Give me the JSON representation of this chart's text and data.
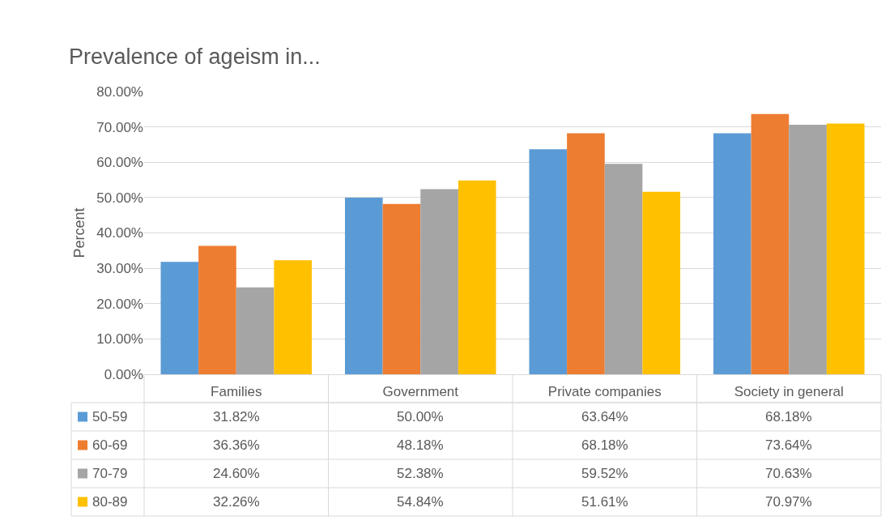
{
  "chart_data": {
    "type": "bar",
    "title": "Prevalence of ageism in...",
    "ylabel": "Percent",
    "categories": [
      "Families",
      "Government",
      "Private companies",
      "Society in general"
    ],
    "series": [
      {
        "name": "50-59",
        "color": "#5b9bd5",
        "values": [
          31.82,
          50.0,
          63.64,
          68.18
        ],
        "value_labels": [
          "31.82%",
          "50.00%",
          "63.64%",
          "68.18%"
        ]
      },
      {
        "name": "60-69",
        "color": "#ed7d31",
        "values": [
          36.36,
          48.18,
          68.18,
          73.64
        ],
        "value_labels": [
          "36.36%",
          "48.18%",
          "68.18%",
          "73.64%"
        ]
      },
      {
        "name": "70-79",
        "color": "#a5a5a5",
        "values": [
          24.6,
          52.38,
          59.52,
          70.63
        ],
        "value_labels": [
          "24.60%",
          "52.38%",
          "59.52%",
          "70.63%"
        ]
      },
      {
        "name": "80-89",
        "color": "#ffc000",
        "values": [
          32.26,
          54.84,
          51.61,
          70.97
        ],
        "value_labels": [
          "32.26%",
          "54.84%",
          "51.61%",
          "70.97%"
        ]
      }
    ],
    "ylim": [
      0,
      80
    ],
    "yticks": [
      {
        "value": 0,
        "label": "0.00%"
      },
      {
        "value": 10,
        "label": "10.00%"
      },
      {
        "value": 20,
        "label": "20.00%"
      },
      {
        "value": 30,
        "label": "30.00%"
      },
      {
        "value": 40,
        "label": "40.00%"
      },
      {
        "value": 50,
        "label": "50.00%"
      },
      {
        "value": 60,
        "label": "60.00%"
      },
      {
        "value": 70,
        "label": "70.00%"
      },
      {
        "value": 80,
        "label": "80.00%"
      }
    ],
    "grid": "y",
    "legend": "bottom left"
  }
}
